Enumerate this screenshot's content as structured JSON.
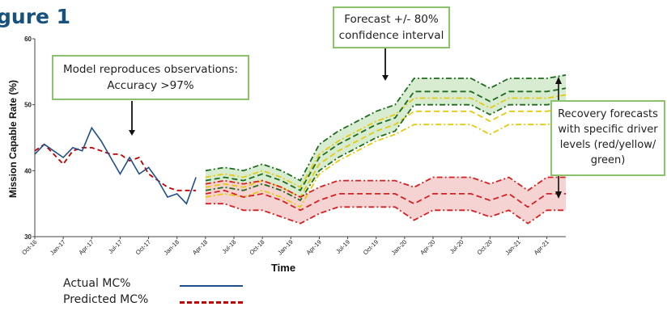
{
  "figure_title": "gure 1",
  "annotations": {
    "model": [
      "Model reproduces observations:",
      "Accuracy >97%"
    ],
    "forecast": [
      "Forecast +/- 80%",
      "confidence interval"
    ],
    "recovery": [
      "Recovery forecasts",
      "with specific driver",
      "levels (red/yellow/",
      "green)"
    ]
  },
  "legend": [
    {
      "label": "Actual MC%",
      "style": "solid",
      "color": "#1f4e8c"
    },
    {
      "label": "Predicted MC%",
      "style": "dashed",
      "color": "#c00000"
    }
  ],
  "colors": {
    "actual": "#1f4e8c",
    "predicted": "#c00000",
    "green": "#1e6b1e",
    "yellow": "#e3cc10",
    "red": "#d62020",
    "green_band": "#d8ecd2",
    "red_band": "#f6d3d3",
    "annotation_border": "#8cc26b",
    "title": "#17527f"
  },
  "chart_data": {
    "type": "line",
    "xlabel": "Time",
    "ylabel": "Mission Capable Rate (%)",
    "ylim": [
      30,
      60
    ],
    "yticks": [
      30,
      40,
      50,
      60
    ],
    "xticks": [
      "Oct-16",
      "Jan-17",
      "Apr-17",
      "Jul-17",
      "Oct-17",
      "Jan-18",
      "Apr-18",
      "Jul-18",
      "Oct-18",
      "Jan-19",
      "Apr-19",
      "Jul-19",
      "Oct-19",
      "Jan-20",
      "Apr-20",
      "Jul-20",
      "Oct-20",
      "Jan-21",
      "Apr-21"
    ],
    "xlim": [
      0,
      56
    ],
    "grid": false,
    "legend_position": "bottom-left",
    "series": [
      {
        "name": "Actual MC%",
        "style": "solid",
        "x": [
          0,
          1,
          2,
          3,
          4,
          5,
          6,
          7,
          8,
          9,
          10,
          11,
          12,
          13,
          14,
          15,
          16,
          17,
          18
        ],
        "y": [
          42.5,
          44,
          43,
          42,
          43.5,
          43,
          46.5,
          44.5,
          42,
          39.5,
          42,
          39.5,
          40.5,
          38.5,
          36,
          36.5,
          35,
          39,
          null
        ]
      },
      {
        "name": "Predicted MC%",
        "style": "dashed",
        "x": [
          0,
          1,
          2,
          3,
          4,
          5,
          6,
          7,
          8,
          9,
          10,
          11,
          12,
          13,
          14,
          15,
          16,
          17
        ],
        "y": [
          43,
          44,
          42.5,
          41,
          43,
          43.5,
          43.5,
          43,
          42.5,
          42.5,
          41.5,
          42,
          39.5,
          38.5,
          37.5,
          37,
          37,
          37
        ]
      }
    ],
    "forecast": {
      "x": [
        18,
        20,
        22,
        24,
        26,
        28,
        30,
        32,
        34,
        36,
        38,
        40,
        42,
        44,
        46,
        48,
        50,
        52,
        54,
        56
      ],
      "green": {
        "upper": [
          40,
          40.5,
          40,
          41,
          40,
          38.5,
          44,
          46,
          47.5,
          49,
          50,
          54,
          54,
          54,
          54,
          52.5,
          54,
          54,
          54,
          54.5
        ],
        "mid": [
          38.5,
          39,
          38.5,
          39.5,
          38.5,
          37,
          42,
          44,
          45.5,
          47,
          48,
          52,
          52,
          52,
          52,
          50.5,
          52,
          52,
          52,
          52.5
        ],
        "lower": [
          37,
          37.5,
          37,
          38,
          37,
          35.5,
          40,
          42,
          43.5,
          45,
          46,
          50,
          50,
          50,
          50,
          48.5,
          50,
          50,
          50,
          50.5
        ]
      },
      "yellow": {
        "upper": [
          39,
          39.5,
          39,
          40,
          39,
          37.5,
          42.5,
          44.5,
          46,
          47.5,
          48.5,
          51,
          51,
          51,
          51,
          49.5,
          51,
          51,
          51,
          51.5
        ],
        "mid": [
          37.5,
          38,
          37.5,
          38.5,
          37.5,
          36,
          41,
          43,
          44.5,
          46,
          47,
          49,
          49,
          49,
          49,
          47.5,
          49,
          49,
          49,
          49.5
        ],
        "lower": [
          36,
          36.5,
          36,
          37,
          36,
          34.5,
          39.5,
          41.5,
          43,
          44.5,
          45.5,
          47,
          47,
          47,
          47,
          45.5,
          47,
          47,
          47,
          47.5
        ]
      },
      "red": {
        "upper": [
          38,
          38.5,
          38,
          38.5,
          37.5,
          36,
          37.5,
          38.5,
          38.5,
          38.5,
          38.5,
          37.5,
          39,
          39,
          39,
          38,
          39,
          37,
          39,
          39
        ],
        "mid": [
          36.5,
          37,
          36,
          36.5,
          35.5,
          34,
          35.5,
          36.5,
          36.5,
          36.5,
          36.5,
          35,
          36.5,
          36.5,
          36.5,
          35.5,
          36.5,
          34.5,
          36.5,
          36.5
        ],
        "lower": [
          35,
          35,
          34,
          34,
          33,
          32,
          33.5,
          34.5,
          34.5,
          34.5,
          34.5,
          32.5,
          34,
          34,
          34,
          33,
          34,
          32,
          34,
          34
        ]
      }
    }
  }
}
